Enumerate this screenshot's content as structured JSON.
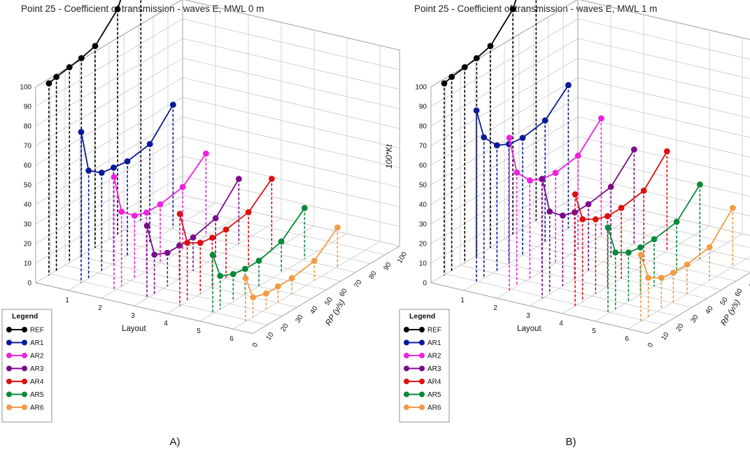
{
  "chart_data": [
    {
      "type": "line",
      "panel_label": "A)",
      "title": "Point 25 - Coefficient of transmission - waves E, MWL 0 m",
      "zlabel": "100*Kt",
      "xlabel": "Layout",
      "ylabel": "RP (y/s)",
      "zlim": [
        0,
        100
      ],
      "z_ticks": [
        "0",
        "10",
        "20",
        "30",
        "40",
        "50",
        "60",
        "70",
        "80",
        "90",
        "100"
      ],
      "layout_ticks": [
        "1",
        "2",
        "3",
        "4",
        "5",
        "6"
      ],
      "rp_ticks": [
        "0",
        "10",
        "20",
        "30",
        "40",
        "50",
        "60",
        "70",
        "80",
        "90",
        "100"
      ],
      "rp_values": [
        1,
        2,
        5,
        10,
        20,
        50,
        100
      ],
      "series": [
        {
          "name": "REF",
          "color": "#000000",
          "layout": 0,
          "values": [
            98,
            99,
            100,
            101,
            103,
            115,
            145
          ]
        },
        {
          "name": "AR1",
          "color": "#0a1a9a",
          "layout": 1,
          "values": [
            77,
            55,
            50,
            49,
            48,
            50,
            63
          ]
        },
        {
          "name": "AR2",
          "color": "#ee22dd",
          "layout": 2,
          "values": [
            58,
            38,
            32,
            30,
            30,
            32,
            42
          ]
        },
        {
          "name": "AR3",
          "color": "#7a0c8a",
          "layout": 3,
          "values": [
            37,
            20,
            17,
            17,
            17,
            20,
            33
          ]
        },
        {
          "name": "AR4",
          "color": "#dd1111",
          "layout": 4,
          "values": [
            47,
            30,
            26,
            25,
            25,
            27,
            37
          ]
        },
        {
          "name": "AR5",
          "color": "#0a8a3a",
          "layout": 5,
          "values": [
            30,
            17,
            14,
            13,
            13,
            16,
            26
          ]
        },
        {
          "name": "AR6",
          "color": "#f59a44",
          "layout": 6,
          "values": [
            22,
            10,
            8,
            8,
            8,
            10,
            20
          ]
        }
      ]
    },
    {
      "type": "line",
      "panel_label": "B)",
      "title": "Point 25 - Coefficient of transmission - waves E, MWL 1 m",
      "zlabel": "100*Kt",
      "xlabel": "Layout",
      "ylabel": "RP (y/s)",
      "zlim": [
        0,
        100
      ],
      "z_ticks": [
        "0",
        "10",
        "20",
        "30",
        "40",
        "50",
        "60",
        "70",
        "80",
        "90",
        "100"
      ],
      "layout_ticks": [
        "1",
        "2",
        "3",
        "4",
        "5",
        "6"
      ],
      "rp_ticks": [
        "0",
        "10",
        "20",
        "30",
        "40",
        "50",
        "60",
        "70",
        "80",
        "90",
        "100"
      ],
      "rp_values": [
        1,
        2,
        5,
        10,
        20,
        50,
        100
      ],
      "series": [
        {
          "name": "REF",
          "color": "#000000",
          "layout": 0,
          "values": [
            98,
            99,
            100,
            101,
            103,
            115,
            145
          ]
        },
        {
          "name": "AR1",
          "color": "#0a1a9a",
          "layout": 1,
          "values": [
            88,
            72,
            64,
            61,
            60,
            62,
            73
          ]
        },
        {
          "name": "AR2",
          "color": "#ee22dd",
          "layout": 2,
          "values": [
            78,
            58,
            50,
            47,
            46,
            48,
            60
          ]
        },
        {
          "name": "AR3",
          "color": "#7a0c8a",
          "layout": 3,
          "values": [
            61,
            42,
            36,
            34,
            34,
            36,
            48
          ]
        },
        {
          "name": "AR4",
          "color": "#dd1111",
          "layout": 4,
          "values": [
            57,
            42,
            38,
            36,
            36,
            38,
            51
          ]
        },
        {
          "name": "AR5",
          "color": "#0a8a3a",
          "layout": 5,
          "values": [
            44,
            29,
            25,
            24,
            24,
            26,
            38
          ]
        },
        {
          "name": "AR6",
          "color": "#f59a44",
          "layout": 6,
          "values": [
            34,
            20,
            16,
            15,
            15,
            17,
            30
          ]
        }
      ]
    }
  ]
}
